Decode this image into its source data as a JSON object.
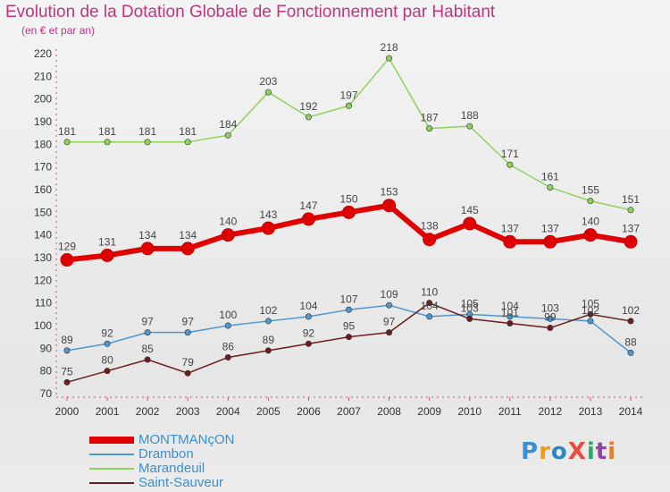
{
  "title": "Evolution de la Dotation Globale de Fonctionnement par Habitant",
  "subtitle": "(en € et par an)",
  "logo_text": "ProXiti",
  "chart_data": {
    "type": "line",
    "title": "Evolution de la Dotation Globale de Fonctionnement par Habitant",
    "subtitle": "(en € et par an)",
    "xlabel": "",
    "ylabel": "",
    "ylim": [
      70,
      220
    ],
    "y_ticks": [
      70,
      80,
      90,
      100,
      110,
      120,
      130,
      140,
      150,
      160,
      170,
      180,
      190,
      200,
      210,
      220
    ],
    "grid": false,
    "legend_position": "bottom-left",
    "x": [
      "2000",
      "2001",
      "2002",
      "2003",
      "2004",
      "2005",
      "2006",
      "2007",
      "2008",
      "2009",
      "2010",
      "2011",
      "2012",
      "2013",
      "2014"
    ],
    "series": [
      {
        "name": "MONTMANçON",
        "color": "#e00000",
        "values": [
          129,
          131,
          134,
          134,
          140,
          143,
          147,
          150,
          153,
          138,
          145,
          137,
          137,
          140,
          137
        ]
      },
      {
        "name": "Drambon",
        "color": "#4f97cf",
        "values": [
          89,
          92,
          97,
          97,
          100,
          102,
          104,
          107,
          109,
          104,
          105,
          104,
          103,
          102,
          88
        ]
      },
      {
        "name": "Marandeuil",
        "color": "#8fd25a",
        "values": [
          181,
          181,
          181,
          181,
          184,
          203,
          192,
          197,
          218,
          187,
          188,
          171,
          161,
          155,
          151
        ]
      },
      {
        "name": "Saint-Sauveur",
        "color": "#6b1e1e",
        "values": [
          75,
          80,
          85,
          79,
          86,
          89,
          92,
          95,
          97,
          110,
          103,
          101,
          99,
          105,
          102
        ]
      }
    ]
  }
}
